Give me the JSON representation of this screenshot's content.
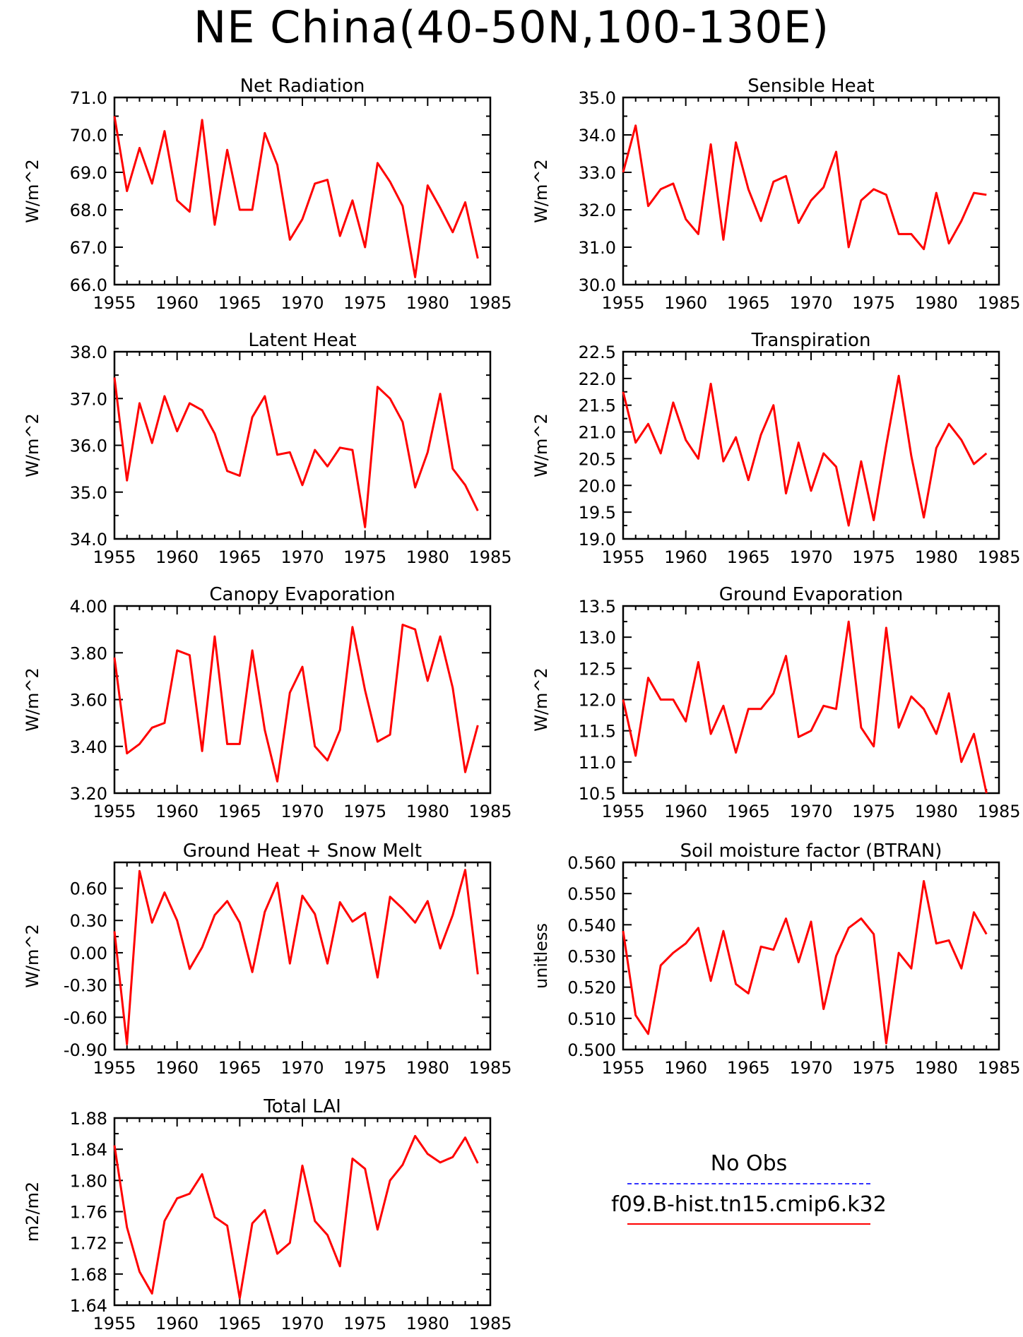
{
  "main_title": "NE China(40-50N,100-130E)",
  "legend": {
    "obs_label": "No Obs",
    "obs_color": "#3333ff",
    "model_label": "f09.B-hist.tn15.cmip6.k32",
    "model_color": "#ff0000"
  },
  "chart_data": [
    {
      "type": "line",
      "title": "Net Radiation",
      "ylabel": "W/m^2",
      "xlim": [
        1955,
        1985
      ],
      "ylim": [
        66.0,
        71.0
      ],
      "xticks": [
        "1955",
        "1960",
        "1965",
        "1970",
        "1975",
        "1980",
        "1985"
      ],
      "yticks": [
        "66.0",
        "67.0",
        "68.0",
        "69.0",
        "70.0",
        "71.0"
      ],
      "ytick_values": [
        66.0,
        67.0,
        68.0,
        69.0,
        70.0,
        71.0
      ],
      "series": [
        {
          "color": "#ff0000",
          "x": [
            1955,
            1956,
            1957,
            1958,
            1959,
            1960,
            1961,
            1962,
            1963,
            1964,
            1965,
            1966,
            1967,
            1968,
            1969,
            1970,
            1971,
            1972,
            1973,
            1974,
            1975,
            1976,
            1977,
            1978,
            1979,
            1980,
            1981,
            1982,
            1983,
            1984
          ],
          "values": [
            70.5,
            68.5,
            69.65,
            68.7,
            70.1,
            68.25,
            67.95,
            70.4,
            67.6,
            69.6,
            68.0,
            68.0,
            70.05,
            69.2,
            67.2,
            67.75,
            68.7,
            68.8,
            67.3,
            68.25,
            67.0,
            69.25,
            68.75,
            68.1,
            66.2,
            68.65,
            68.05,
            67.4,
            68.2,
            66.7
          ]
        }
      ]
    },
    {
      "type": "line",
      "title": "Sensible Heat",
      "ylabel": "W/m^2",
      "xlim": [
        1955,
        1985
      ],
      "ylim": [
        30.0,
        35.0
      ],
      "xticks": [
        "1955",
        "1960",
        "1965",
        "1970",
        "1975",
        "1980",
        "1985"
      ],
      "yticks": [
        "30.0",
        "31.0",
        "32.0",
        "33.0",
        "34.0",
        "35.0"
      ],
      "ytick_values": [
        30.0,
        31.0,
        32.0,
        33.0,
        34.0,
        35.0
      ],
      "series": [
        {
          "color": "#ff0000",
          "x": [
            1955,
            1956,
            1957,
            1958,
            1959,
            1960,
            1961,
            1962,
            1963,
            1964,
            1965,
            1966,
            1967,
            1968,
            1969,
            1970,
            1971,
            1972,
            1973,
            1974,
            1975,
            1976,
            1977,
            1978,
            1979,
            1980,
            1981,
            1982,
            1983,
            1984
          ],
          "values": [
            33.0,
            34.25,
            32.1,
            32.55,
            32.7,
            31.75,
            31.35,
            33.75,
            31.2,
            33.8,
            32.55,
            31.7,
            32.75,
            32.9,
            31.65,
            32.25,
            32.6,
            33.55,
            31.0,
            32.25,
            32.55,
            32.4,
            31.35,
            31.35,
            30.95,
            32.45,
            31.1,
            31.7,
            32.45,
            32.4
          ]
        }
      ]
    },
    {
      "type": "line",
      "title": "Latent Heat",
      "ylabel": "W/m^2",
      "xlim": [
        1955,
        1985
      ],
      "ylim": [
        34.0,
        38.0
      ],
      "xticks": [
        "1955",
        "1960",
        "1965",
        "1970",
        "1975",
        "1980",
        "1985"
      ],
      "yticks": [
        "34.0",
        "35.0",
        "36.0",
        "37.0",
        "38.0"
      ],
      "ytick_values": [
        34.0,
        35.0,
        36.0,
        37.0,
        38.0
      ],
      "series": [
        {
          "color": "#ff0000",
          "x": [
            1955,
            1956,
            1957,
            1958,
            1959,
            1960,
            1961,
            1962,
            1963,
            1964,
            1965,
            1966,
            1967,
            1968,
            1969,
            1970,
            1971,
            1972,
            1973,
            1974,
            1975,
            1976,
            1977,
            1978,
            1979,
            1980,
            1981,
            1982,
            1983,
            1984
          ],
          "values": [
            37.45,
            35.25,
            36.9,
            36.05,
            37.05,
            36.3,
            36.9,
            36.75,
            36.25,
            35.45,
            35.35,
            36.6,
            37.05,
            35.8,
            35.85,
            35.15,
            35.9,
            35.55,
            35.95,
            35.9,
            34.25,
            37.25,
            37.0,
            36.5,
            35.1,
            35.85,
            37.1,
            35.5,
            35.15,
            34.6
          ]
        }
      ]
    },
    {
      "type": "line",
      "title": "Transpiration",
      "ylabel": "W/m^2",
      "xlim": [
        1955,
        1985
      ],
      "ylim": [
        19.0,
        22.5
      ],
      "xticks": [
        "1955",
        "1960",
        "1965",
        "1970",
        "1975",
        "1980",
        "1985"
      ],
      "yticks": [
        "19.0",
        "19.5",
        "20.0",
        "20.5",
        "21.0",
        "21.5",
        "22.0",
        "22.5"
      ],
      "ytick_values": [
        19.0,
        19.5,
        20.0,
        20.5,
        21.0,
        21.5,
        22.0,
        22.5
      ],
      "series": [
        {
          "color": "#ff0000",
          "x": [
            1955,
            1956,
            1957,
            1958,
            1959,
            1960,
            1961,
            1962,
            1963,
            1964,
            1965,
            1966,
            1967,
            1968,
            1969,
            1970,
            1971,
            1972,
            1973,
            1974,
            1975,
            1976,
            1977,
            1978,
            1979,
            1980,
            1981,
            1982,
            1983,
            1984
          ],
          "values": [
            21.75,
            20.8,
            21.15,
            20.6,
            21.55,
            20.85,
            20.5,
            21.9,
            20.45,
            20.9,
            20.1,
            20.95,
            21.5,
            19.85,
            20.8,
            19.9,
            20.6,
            20.35,
            19.25,
            20.45,
            19.35,
            20.75,
            22.05,
            20.55,
            19.4,
            20.7,
            21.15,
            20.85,
            20.4,
            20.6
          ]
        }
      ]
    },
    {
      "type": "line",
      "title": "Canopy Evaporation",
      "ylabel": "W/m^2",
      "xlim": [
        1955,
        1985
      ],
      "ylim": [
        3.2,
        4.0
      ],
      "xticks": [
        "1955",
        "1960",
        "1965",
        "1970",
        "1975",
        "1980",
        "1985"
      ],
      "yticks": [
        "3.20",
        "3.40",
        "3.60",
        "3.80",
        "4.00"
      ],
      "ytick_values": [
        3.2,
        3.4,
        3.6,
        3.8,
        4.0
      ],
      "series": [
        {
          "color": "#ff0000",
          "x": [
            1955,
            1956,
            1957,
            1958,
            1959,
            1960,
            1961,
            1962,
            1963,
            1964,
            1965,
            1966,
            1967,
            1968,
            1969,
            1970,
            1971,
            1972,
            1973,
            1974,
            1975,
            1976,
            1977,
            1978,
            1979,
            1980,
            1981,
            1982,
            1983,
            1984
          ],
          "values": [
            3.78,
            3.37,
            3.41,
            3.48,
            3.5,
            3.81,
            3.79,
            3.38,
            3.87,
            3.41,
            3.41,
            3.81,
            3.47,
            3.25,
            3.63,
            3.74,
            3.4,
            3.34,
            3.47,
            3.91,
            3.64,
            3.42,
            3.45,
            3.92,
            3.9,
            3.68,
            3.87,
            3.65,
            3.29,
            3.49
          ]
        }
      ]
    },
    {
      "type": "line",
      "title": "Ground Evaporation",
      "ylabel": "W/m^2",
      "xlim": [
        1955,
        1985
      ],
      "ylim": [
        10.5,
        13.5
      ],
      "xticks": [
        "1955",
        "1960",
        "1965",
        "1970",
        "1975",
        "1980",
        "1985"
      ],
      "yticks": [
        "10.5",
        "11.0",
        "11.5",
        "12.0",
        "12.5",
        "13.0",
        "13.5"
      ],
      "ytick_values": [
        10.5,
        11.0,
        11.5,
        12.0,
        12.5,
        13.0,
        13.5
      ],
      "series": [
        {
          "color": "#ff0000",
          "x": [
            1955,
            1956,
            1957,
            1958,
            1959,
            1960,
            1961,
            1962,
            1963,
            1964,
            1965,
            1966,
            1967,
            1968,
            1969,
            1970,
            1971,
            1972,
            1973,
            1974,
            1975,
            1976,
            1977,
            1978,
            1979,
            1980,
            1981,
            1982,
            1983,
            1984
          ],
          "values": [
            12.0,
            11.1,
            12.35,
            12.0,
            12.0,
            11.65,
            12.6,
            11.45,
            11.9,
            11.15,
            11.85,
            11.85,
            12.1,
            12.7,
            11.4,
            11.5,
            11.9,
            11.85,
            13.25,
            11.55,
            11.25,
            13.15,
            11.55,
            12.05,
            11.85,
            11.45,
            12.1,
            11.0,
            11.45,
            10.5
          ]
        }
      ]
    },
    {
      "type": "line",
      "title": "Ground Heat + Snow Melt",
      "ylabel": "W/m^2",
      "xlim": [
        1955,
        1985
      ],
      "ylim": [
        -0.9,
        0.84
      ],
      "xticks": [
        "1955",
        "1960",
        "1965",
        "1970",
        "1975",
        "1980",
        "1985"
      ],
      "yticks": [
        "-0.90",
        "-0.60",
        "-0.30",
        "0.00",
        "0.30",
        "0.60"
      ],
      "ytick_values": [
        -0.9,
        -0.6,
        -0.3,
        0.0,
        0.3,
        0.6
      ],
      "series": [
        {
          "color": "#ff0000",
          "x": [
            1955,
            1956,
            1957,
            1958,
            1959,
            1960,
            1961,
            1962,
            1963,
            1964,
            1965,
            1966,
            1967,
            1968,
            1969,
            1970,
            1971,
            1972,
            1973,
            1974,
            1975,
            1976,
            1977,
            1978,
            1979,
            1980,
            1981,
            1982,
            1983,
            1984
          ],
          "values": [
            0.2,
            -0.85,
            0.76,
            0.28,
            0.56,
            0.3,
            -0.15,
            0.05,
            0.35,
            0.48,
            0.28,
            -0.18,
            0.38,
            0.65,
            -0.1,
            0.53,
            0.36,
            -0.1,
            0.47,
            0.29,
            0.37,
            -0.23,
            0.52,
            0.41,
            0.28,
            0.48,
            0.04,
            0.35,
            0.77,
            -0.2
          ]
        }
      ]
    },
    {
      "type": "line",
      "title": "Soil moisture factor (BTRAN)",
      "ylabel": "unitless",
      "xlim": [
        1955,
        1985
      ],
      "ylim": [
        0.5,
        0.56
      ],
      "xticks": [
        "1955",
        "1960",
        "1965",
        "1970",
        "1975",
        "1980",
        "1985"
      ],
      "yticks": [
        "0.500",
        "0.510",
        "0.520",
        "0.530",
        "0.540",
        "0.550",
        "0.560"
      ],
      "ytick_values": [
        0.5,
        0.51,
        0.52,
        0.53,
        0.54,
        0.55,
        0.56
      ],
      "series": [
        {
          "color": "#ff0000",
          "x": [
            1955,
            1956,
            1957,
            1958,
            1959,
            1960,
            1961,
            1962,
            1963,
            1964,
            1965,
            1966,
            1967,
            1968,
            1969,
            1970,
            1971,
            1972,
            1973,
            1974,
            1975,
            1976,
            1977,
            1978,
            1979,
            1980,
            1981,
            1982,
            1983,
            1984
          ],
          "values": [
            0.538,
            0.511,
            0.505,
            0.527,
            0.531,
            0.534,
            0.539,
            0.522,
            0.538,
            0.521,
            0.518,
            0.533,
            0.532,
            0.542,
            0.528,
            0.541,
            0.513,
            0.53,
            0.539,
            0.542,
            0.537,
            0.502,
            0.531,
            0.526,
            0.554,
            0.534,
            0.535,
            0.526,
            0.544,
            0.537
          ]
        }
      ]
    },
    {
      "type": "line",
      "title": "Total LAI",
      "ylabel": "m2/m2",
      "xlim": [
        1955,
        1985
      ],
      "ylim": [
        1.64,
        1.88
      ],
      "xticks": [
        "1955",
        "1960",
        "1965",
        "1970",
        "1975",
        "1980",
        "1985"
      ],
      "yticks": [
        "1.64",
        "1.68",
        "1.72",
        "1.76",
        "1.80",
        "1.84",
        "1.88"
      ],
      "ytick_values": [
        1.64,
        1.68,
        1.72,
        1.76,
        1.8,
        1.84,
        1.88
      ],
      "series": [
        {
          "color": "#ff0000",
          "x": [
            1955,
            1956,
            1957,
            1958,
            1959,
            1960,
            1961,
            1962,
            1963,
            1964,
            1965,
            1966,
            1967,
            1968,
            1969,
            1970,
            1971,
            1972,
            1973,
            1974,
            1975,
            1976,
            1977,
            1978,
            1979,
            1980,
            1981,
            1982,
            1983,
            1984
          ],
          "values": [
            1.845,
            1.74,
            1.683,
            1.655,
            1.748,
            1.777,
            1.783,
            1.808,
            1.753,
            1.742,
            1.649,
            1.745,
            1.762,
            1.706,
            1.72,
            1.819,
            1.748,
            1.73,
            1.69,
            1.828,
            1.815,
            1.737,
            1.8,
            1.82,
            1.857,
            1.834,
            1.823,
            1.83,
            1.855,
            1.822
          ]
        }
      ]
    }
  ]
}
